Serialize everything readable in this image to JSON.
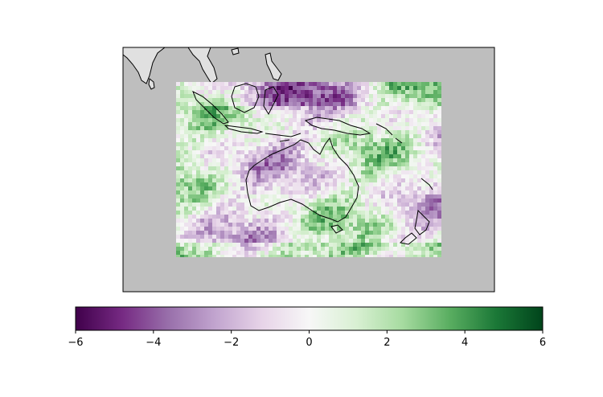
{
  "map": {
    "ocean_color": "#bebebe",
    "land_color": "#e0e0e0",
    "coastline_color": "#000000",
    "colormap": "PRGn",
    "field_values_range": [
      -6,
      6
    ]
  },
  "colorbar": {
    "orientation": "horizontal",
    "min": -6,
    "max": 6,
    "ticks": [
      -6,
      -4,
      -2,
      0,
      2,
      4,
      6
    ],
    "tick_labels": [
      "−6",
      "−4",
      "−2",
      "0",
      "2",
      "4",
      "6"
    ],
    "stops": [
      "#40004b",
      "#762a83",
      "#9970ab",
      "#c2a5cf",
      "#e7d4e8",
      "#f7f7f7",
      "#d9f0d3",
      "#a6dba0",
      "#5aae61",
      "#1b7837",
      "#00441b"
    ]
  }
}
